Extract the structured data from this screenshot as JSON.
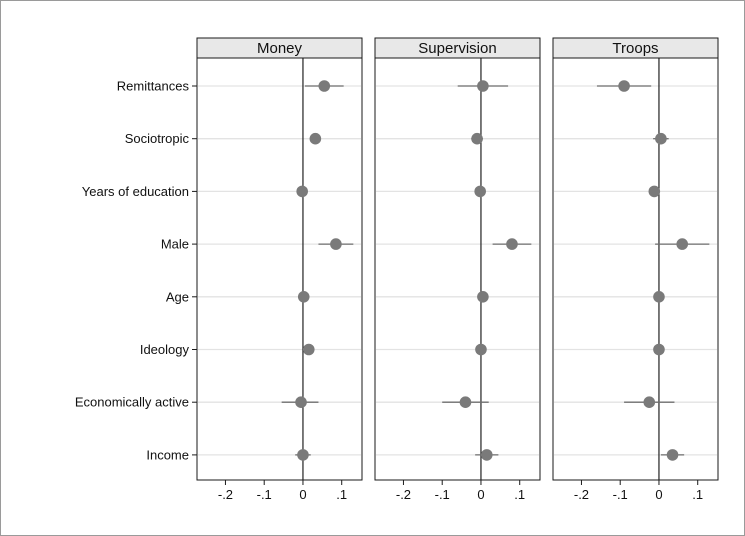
{
  "chart_data": {
    "type": "scatter",
    "subtype": "coefficient-plot",
    "title": "",
    "xlabel": "",
    "ylabel": "",
    "xlim": [
      -0.25,
      0.15
    ],
    "x_ticks": [
      -0.2,
      -0.1,
      0,
      0.1
    ],
    "x_tick_labels": [
      "-.2",
      "-.1",
      "0",
      ".1"
    ],
    "grid": "horizontal-lines",
    "reference_line": 0,
    "marker_color": "#7a7a7a",
    "ci_color": "#6e6e6e",
    "strip_fill": "#e8e8e8",
    "gridline_color": "#e3e3e3",
    "categories": [
      "Remittances",
      "Sociotropic",
      "Years of education",
      "Male",
      "Age",
      "Ideology",
      "Economically active",
      "Income"
    ],
    "panels": [
      {
        "name": "Money",
        "estimates": [
          0.055,
          0.032,
          -0.002,
          0.085,
          0.002,
          0.015,
          -0.005,
          0.0
        ],
        "ci_low": [
          0.005,
          0.022,
          -0.008,
          0.04,
          -0.006,
          0.008,
          -0.055,
          -0.02
        ],
        "ci_high": [
          0.105,
          0.042,
          0.004,
          0.13,
          0.01,
          0.022,
          0.04,
          0.02
        ]
      },
      {
        "name": "Supervision",
        "estimates": [
          0.005,
          -0.01,
          -0.002,
          0.08,
          0.005,
          0.0,
          -0.04,
          0.015
        ],
        "ci_low": [
          -0.06,
          -0.025,
          -0.008,
          0.03,
          -0.003,
          -0.007,
          -0.1,
          -0.015
        ],
        "ci_high": [
          0.07,
          0.005,
          0.004,
          0.13,
          0.013,
          0.007,
          0.02,
          0.045
        ]
      },
      {
        "name": "Troops",
        "estimates": [
          -0.09,
          0.005,
          -0.012,
          0.06,
          0.0,
          0.0,
          -0.025,
          0.035
        ],
        "ci_low": [
          -0.16,
          -0.015,
          -0.018,
          -0.01,
          -0.007,
          -0.007,
          -0.09,
          0.005
        ],
        "ci_high": [
          -0.02,
          0.025,
          -0.006,
          0.13,
          0.007,
          0.007,
          0.04,
          0.065
        ]
      }
    ]
  }
}
